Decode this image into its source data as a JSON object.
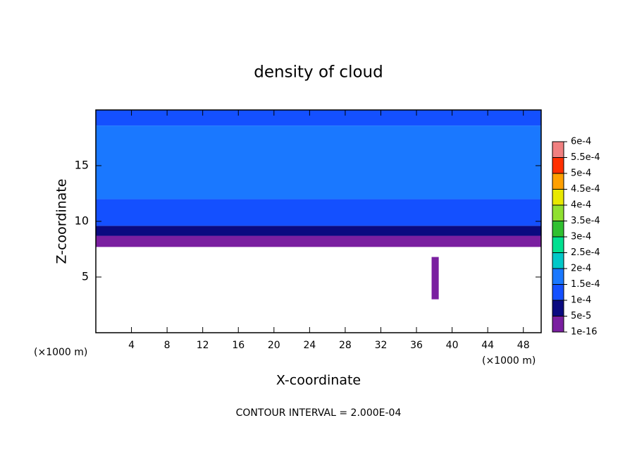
{
  "chart_data": {
    "type": "contour",
    "title": "density of cloud",
    "xlabel": "X-coordinate",
    "ylabel": "Z-coordinate",
    "xlabel_unit": "(×1000 m)",
    "ylabel_unit": "(×1000 m)",
    "annotation": "CONTOUR INTERVAL = 2.000E-04",
    "xlim": [
      0,
      50
    ],
    "ylim": [
      0,
      20
    ],
    "xticks": [
      4,
      8,
      12,
      16,
      20,
      24,
      28,
      32,
      36,
      40,
      44,
      48
    ],
    "yticks": [
      5,
      10,
      15
    ],
    "regions": [
      {
        "level": 0,
        "x": [
          0,
          50
        ],
        "z": [
          7.7,
          8.7
        ]
      },
      {
        "level": 1,
        "x": [
          0,
          50
        ],
        "z": [
          8.7,
          9.6
        ]
      },
      {
        "level": 2,
        "x": [
          0,
          50
        ],
        "z": [
          9.6,
          12
        ]
      },
      {
        "level": 3,
        "x": [
          0,
          50
        ],
        "z": [
          12,
          18.6
        ]
      },
      {
        "level": 2,
        "x": [
          0,
          50
        ],
        "z": [
          18.6,
          20
        ]
      },
      {
        "level": 0,
        "x": [
          37.7,
          38.5
        ],
        "z": [
          3,
          6.8
        ]
      }
    ],
    "colorbar": {
      "colors": [
        "#7a1fa0",
        "#0a0a80",
        "#1450ff",
        "#1a78ff",
        "#00c8c8",
        "#00e090",
        "#30c030",
        "#90e030",
        "#e8e800",
        "#ffa000",
        "#ff3000",
        "#f08080"
      ],
      "lim": [
        1e-16,
        0.0006
      ],
      "levels": [
        {
          "value": 1e-16,
          "label": "1e-16"
        },
        {
          "value": 5e-05,
          "label": "5e-5"
        },
        {
          "value": 0.0001,
          "label": "1e-4"
        },
        {
          "value": 0.00015,
          "label": "1.5e-4"
        },
        {
          "value": 0.0002,
          "label": "2e-4"
        },
        {
          "value": 0.00025,
          "label": "2.5e-4"
        },
        {
          "value": 0.0003,
          "label": "3e-4"
        },
        {
          "value": 0.00035,
          "label": "3.5e-4"
        },
        {
          "value": 0.0004,
          "label": "4e-4"
        },
        {
          "value": 0.00045,
          "label": "4.5e-4"
        },
        {
          "value": 0.0005,
          "label": "5e-4"
        },
        {
          "value": 0.00055,
          "label": "5.5e-4"
        },
        {
          "value": 0.0006,
          "label": "6e-4"
        }
      ]
    }
  }
}
